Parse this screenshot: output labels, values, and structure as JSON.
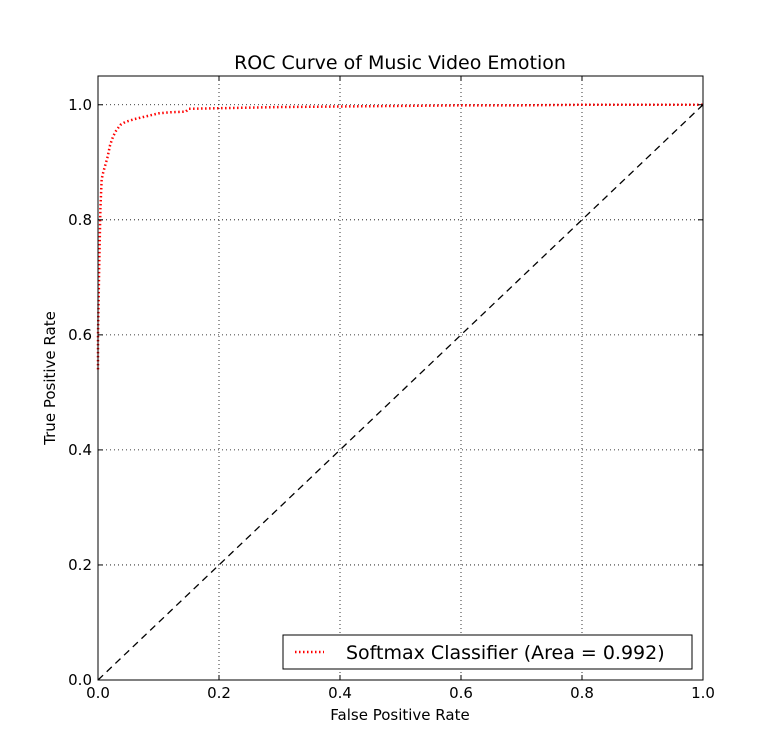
{
  "chart_data": {
    "type": "line",
    "title": "ROC Curve of Music Video Emotion",
    "xlabel": "False Positive Rate",
    "ylabel": "True Positive Rate",
    "xlim": [
      0.0,
      1.0
    ],
    "ylim": [
      0.0,
      1.05
    ],
    "x_ticks": [
      "0.0",
      "0.2",
      "0.4",
      "0.6",
      "0.8",
      "1.0"
    ],
    "y_ticks": [
      "0.0",
      "0.2",
      "0.4",
      "0.6",
      "0.8",
      "1.0"
    ],
    "grid": true,
    "legend_position": "lower-right",
    "series": [
      {
        "name": "Softmax Classifier (Area = 0.992)",
        "color": "#ff0000",
        "line_style": "dotted",
        "x": [
          0.0,
          0.0,
          0.002,
          0.004,
          0.006,
          0.008,
          0.012,
          0.016,
          0.02,
          0.025,
          0.03,
          0.037,
          0.045,
          0.06,
          0.08,
          0.1,
          0.12,
          0.145,
          0.15,
          0.2,
          0.3,
          0.4,
          0.5,
          0.6,
          0.7,
          0.8,
          0.9,
          1.0
        ],
        "y": [
          0.54,
          0.6,
          0.72,
          0.82,
          0.87,
          0.88,
          0.895,
          0.91,
          0.93,
          0.945,
          0.955,
          0.965,
          0.97,
          0.975,
          0.98,
          0.985,
          0.987,
          0.988,
          0.993,
          0.994,
          0.996,
          0.997,
          0.998,
          0.999,
          0.999,
          1.0,
          1.0,
          1.0
        ]
      },
      {
        "name": "",
        "color": "#000000",
        "line_style": "dashed",
        "x": [
          0.0,
          1.0
        ],
        "y": [
          0.0,
          1.0
        ]
      }
    ]
  }
}
